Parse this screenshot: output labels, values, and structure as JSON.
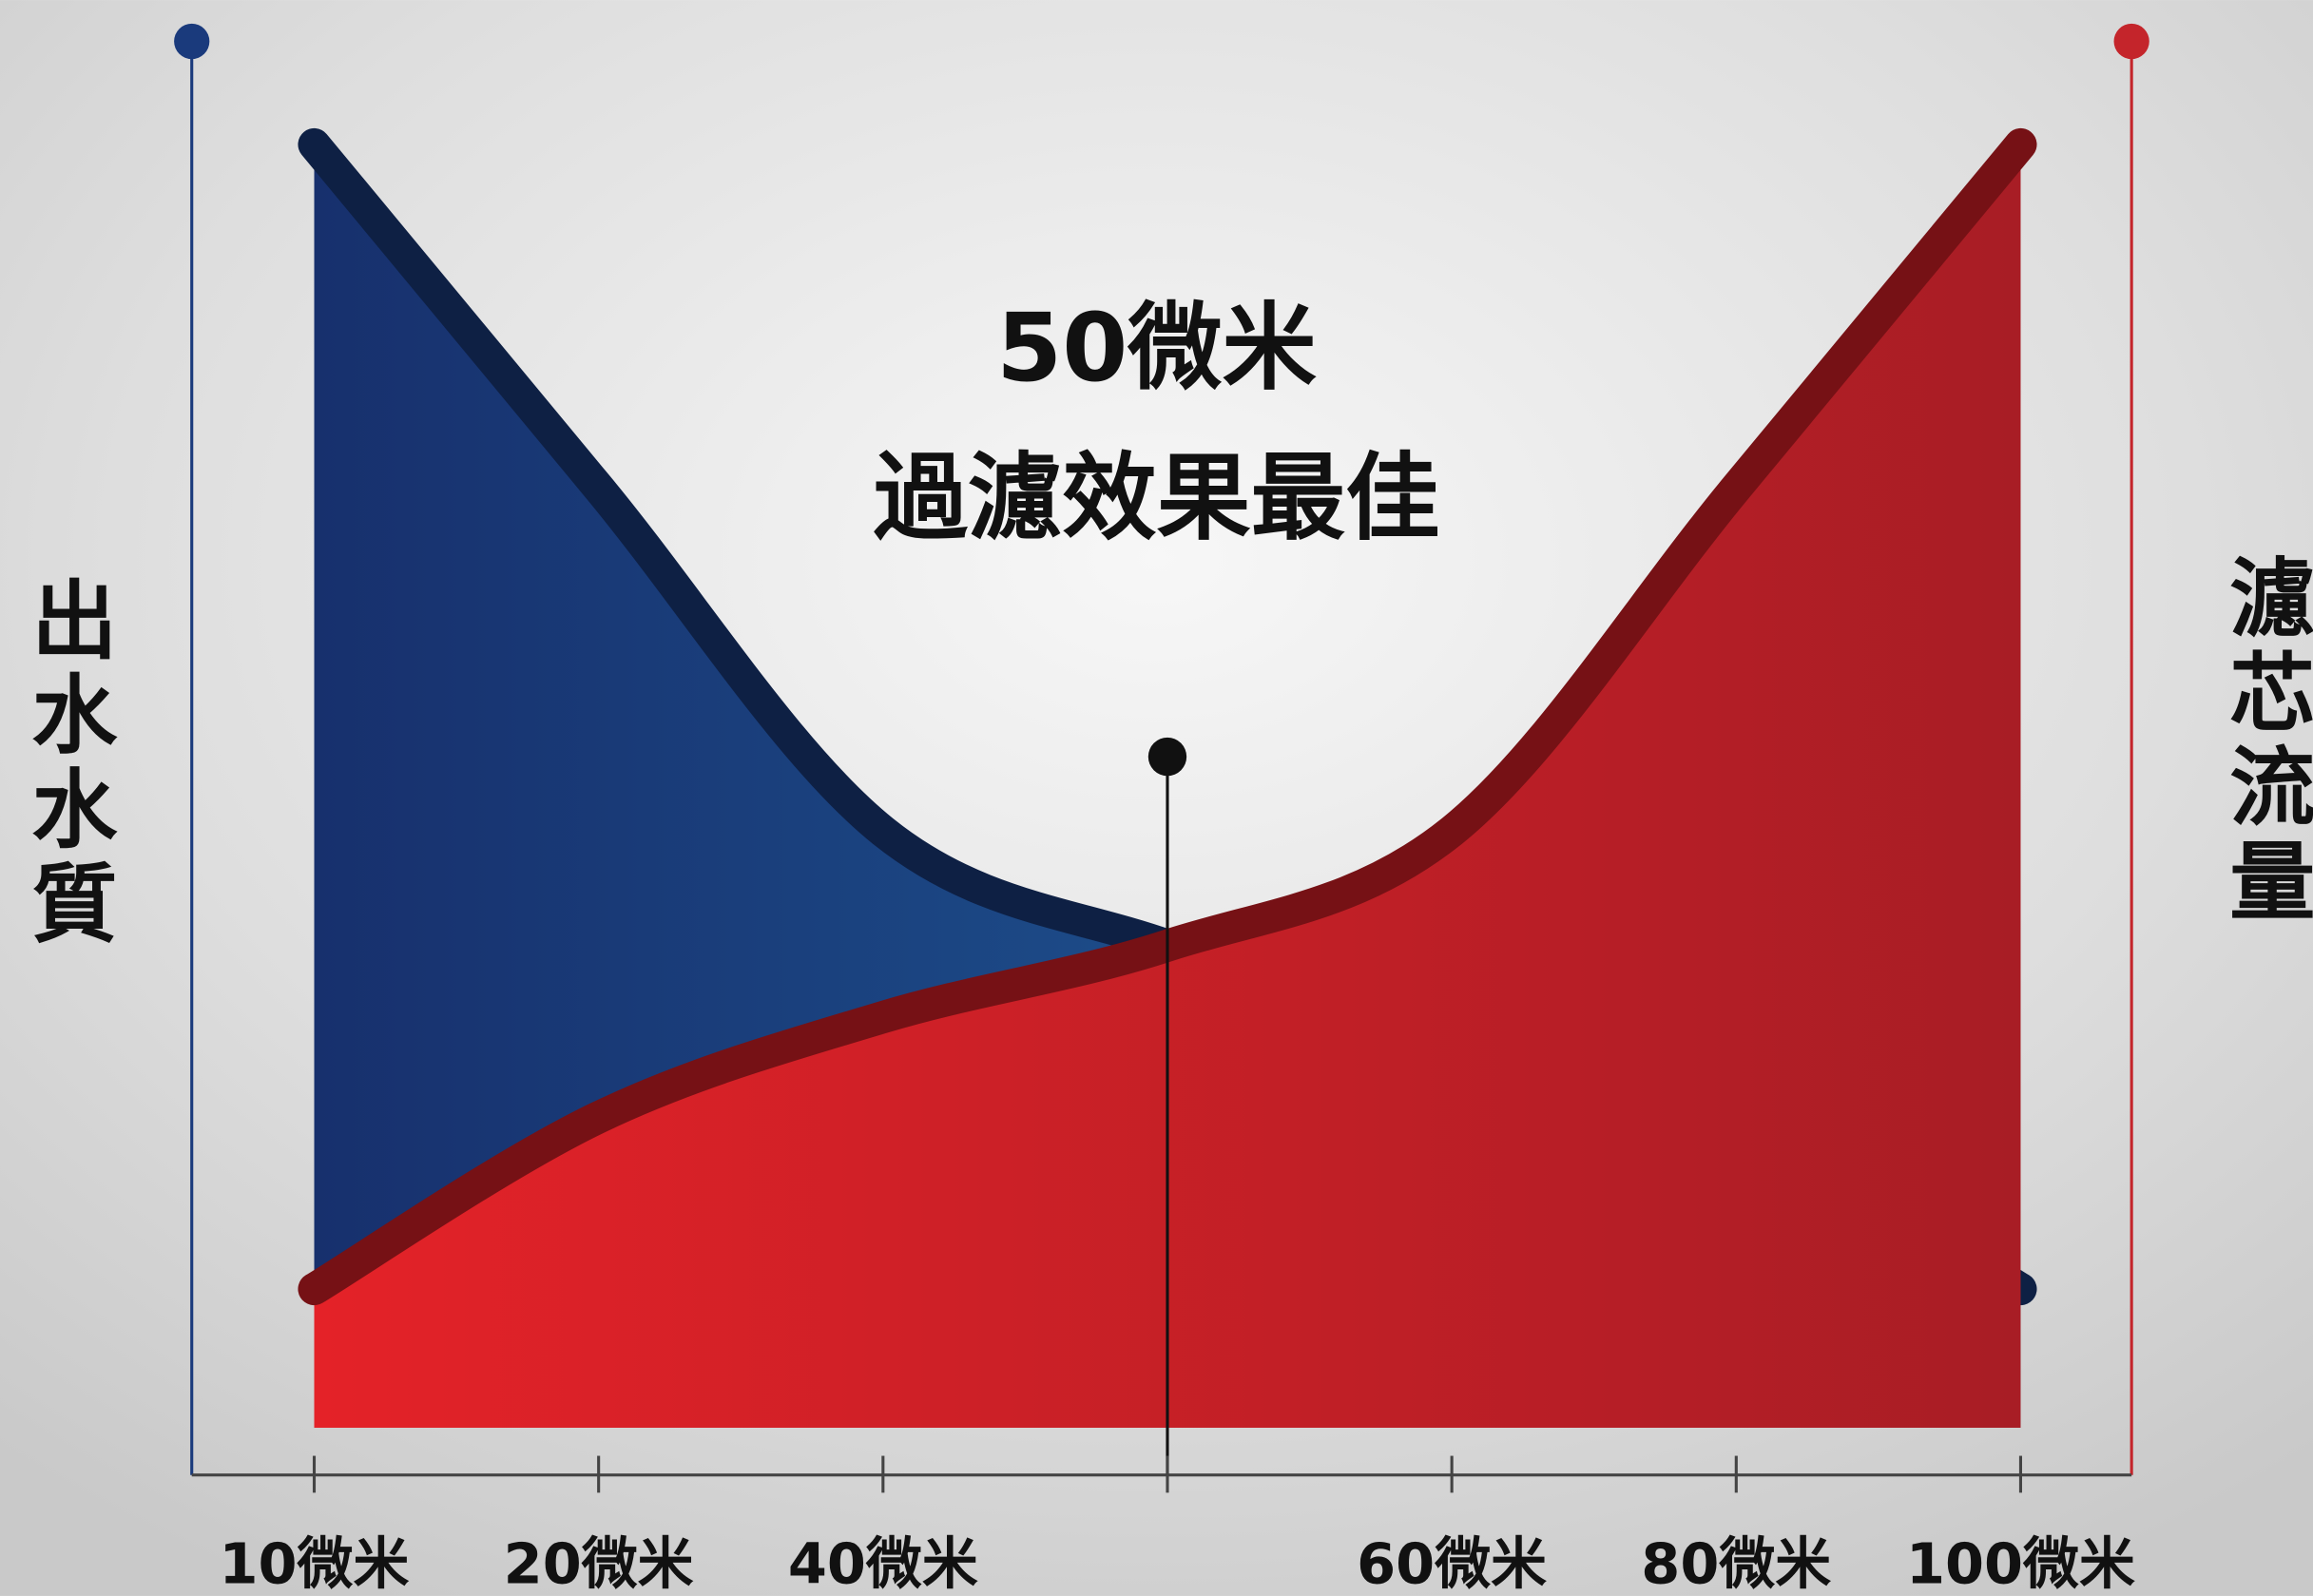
{
  "chart_data": {
    "type": "area",
    "annotation": {
      "title": "50微米",
      "text": "過濾效果最佳",
      "category_index": 3
    },
    "categories": [
      "10微米",
      "20微米",
      "40微米",
      null,
      "60微米",
      "80微米",
      "100微米"
    ],
    "series": [
      {
        "name": "出水水質",
        "color": "#1a3a7c",
        "values": [
          93,
          69,
          45,
          37,
          31,
          25,
          13
        ]
      },
      {
        "name": "濾芯流量",
        "color": "#d61f26",
        "axis": "y2",
        "values": [
          13,
          25,
          32,
          37,
          45,
          69,
          93
        ]
      }
    ],
    "ylim": [
      0,
      100
    ],
    "y2lim": [
      0,
      100
    ],
    "grid": false
  }
}
